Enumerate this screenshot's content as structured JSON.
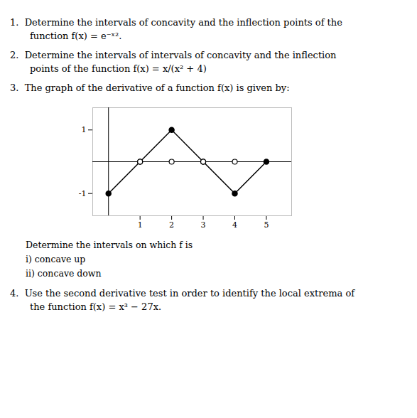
{
  "chart_data": {
    "type": "line",
    "annotations": [
      "1.  Determine the intervals of concavity and the inflection points of the",
      "function f(x) = e⁻ˣ².",
      "2.  Determine the intervals of intervals of concavity and the inflection",
      "points of the function f(x) = x/(x² + 4)",
      "3.  The graph of the derivative of a function f(x) is given by:",
      "Determine the intervals on which f is",
      "i) concave up",
      "ii) concave down",
      "4.  Use the second derivative test in order to identify the local extrema of",
      "the function f(x) = x³ − 27x."
    ],
    "x": [
      0,
      1,
      2,
      3,
      4,
      5
    ],
    "series": [
      {
        "type": "line",
        "marker": "circle",
        "values": [
          -1,
          0,
          1,
          0,
          -1,
          0
        ]
      },
      {
        "type": "scatter",
        "marker": "open circle",
        "values": [
          null,
          0,
          0,
          0,
          0,
          null
        ]
      }
    ],
    "xlim": [
      -0.5,
      5.8
    ],
    "ylim": [
      -1.7,
      1.7
    ],
    "xticks": [
      1,
      2,
      3,
      4,
      5
    ],
    "yticks": [
      -1,
      1
    ],
    "grid": false
  }
}
